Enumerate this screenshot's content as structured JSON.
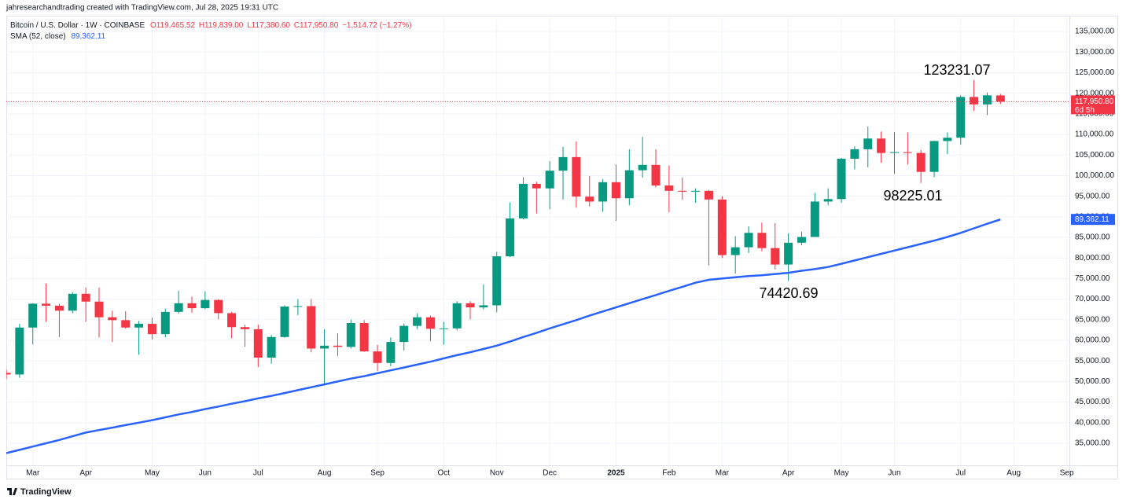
{
  "chart_data": {
    "type": "candlestick",
    "header": "jahresearchandtrading created with TradingView.com, Jul 28, 2025 19:31 UTC",
    "title": "Bitcoin / U.S. Dollar · 1W · COINBASE",
    "legend_values": [
      "O119,465.52",
      "H119,839.00",
      "L117,380.60",
      "C117,950.80",
      "−1,514.72 (−1.27%)"
    ],
    "series": [
      {
        "name": "Bitcoin / U.S. Dollar",
        "up_color": "#089981",
        "down_color": "#f23645",
        "open": [
          52100,
          51700,
          63100,
          68900,
          68400,
          67200,
          71300,
          69400,
          65600,
          64900,
          63100,
          64000,
          61500,
          66900,
          69000,
          67800,
          69800,
          66600,
          63200,
          62700,
          55800,
          60800,
          68200,
          68300,
          58000,
          58700,
          58400,
          64200,
          57300,
          54500,
          59600,
          63500,
          65600,
          62800,
          62900,
          69000,
          68000,
          68500,
          80400,
          89600,
          98000,
          96900,
          101200,
          104500,
          94900,
          93700,
          98400,
          94500,
          101300,
          102600,
          97600,
          96300,
          96100,
          96300,
          94200,
          80700,
          82600,
          86100,
          82400,
          78400,
          83700,
          85100,
          93700,
          94300,
          104100,
          106400,
          109000,
          105500,
          105700,
          105500,
          100900,
          108400,
          109200,
          119100,
          117300,
          119465.52
        ],
        "high": [
          52900,
          64000,
          69000,
          73800,
          68900,
          71700,
          72800,
          72800,
          67200,
          67100,
          64700,
          65500,
          67700,
          72000,
          70600,
          71900,
          70000,
          66900,
          63800,
          63800,
          61300,
          68500,
          70000,
          70000,
          62700,
          61700,
          65000,
          64900,
          58900,
          60700,
          64100,
          66500,
          66000,
          64500,
          69500,
          69500,
          73600,
          81500,
          93500,
          99600,
          98500,
          103500,
          107000,
          108300,
          99900,
          99200,
          102700,
          106400,
          109400,
          106400,
          102500,
          99500,
          96900,
          96500,
          95000,
          85300,
          87700,
          88600,
          88500,
          86000,
          86400,
          95800,
          96900,
          104300,
          107100,
          111900,
          110700,
          110600,
          110500,
          106200,
          108500,
          110500,
          119500,
          123231.07,
          120200,
          119839.0
        ],
        "low": [
          50600,
          50900,
          59000,
          64500,
          60800,
          66600,
          64500,
          60700,
          59600,
          62800,
          56500,
          60200,
          60700,
          66500,
          66700,
          67600,
          65100,
          60500,
          58400,
          53500,
          54300,
          60600,
          66100,
          57100,
          49000,
          56200,
          58000,
          57200,
          52600,
          53700,
          57500,
          62700,
          59800,
          58900,
          62400,
          65100,
          67500,
          66800,
          80200,
          89400,
          90800,
          91800,
          94200,
          92200,
          92500,
          91200,
          89000,
          92800,
          99500,
          97100,
          91100,
          94100,
          93400,
          78200,
          80000,
          76200,
          81200,
          81600,
          77200,
          74420.69,
          83100,
          85100,
          92800,
          93400,
          101500,
          102000,
          103100,
          100400,
          102700,
          98225.01,
          99600,
          105200,
          107500,
          115700,
          114700,
          117380.6
        ],
        "close": [
          51700,
          63100,
          68900,
          68400,
          67200,
          71300,
          69400,
          65600,
          64900,
          63100,
          64000,
          61500,
          66900,
          69000,
          67800,
          69800,
          66600,
          63200,
          62700,
          55800,
          60800,
          68200,
          68300,
          58000,
          58700,
          58400,
          64200,
          57300,
          54500,
          59600,
          63500,
          65600,
          62800,
          62900,
          69000,
          68000,
          68500,
          80400,
          89600,
          98000,
          96900,
          101200,
          104500,
          94900,
          93700,
          98400,
          94500,
          101300,
          102600,
          97600,
          96300,
          96100,
          96300,
          94200,
          80700,
          82600,
          86100,
          82400,
          78400,
          83700,
          85100,
          93700,
          94300,
          104100,
          106400,
          109000,
          105500,
          105700,
          105500,
          100900,
          108400,
          109200,
          119100,
          117300,
          119500,
          117950.8
        ]
      }
    ],
    "sma": {
      "name": "SMA (52, close)",
      "color": "#2962ff",
      "value_label": "89,362.11",
      "values": [
        32600,
        33400,
        34200,
        35000,
        35800,
        36700,
        37600,
        38200,
        38800,
        39400,
        40000,
        40600,
        41300,
        42000,
        42600,
        43300,
        43900,
        44600,
        45200,
        45900,
        46500,
        47200,
        47900,
        48600,
        49300,
        50000,
        50700,
        51300,
        52000,
        52700,
        53400,
        54100,
        54800,
        55600,
        56400,
        57100,
        57900,
        58700,
        59700,
        60800,
        61800,
        62900,
        63900,
        64900,
        66000,
        67000,
        68000,
        69000,
        70000,
        71000,
        72000,
        73000,
        74000,
        74700,
        75000,
        75300,
        75600,
        75800,
        76100,
        76400,
        76900,
        77300,
        77800,
        78600,
        79400,
        80200,
        81000,
        81800,
        82600,
        83400,
        84200,
        85100,
        86100,
        87200,
        88300,
        89362.11
      ]
    },
    "last_price_label": "117,950.80",
    "countdown": "6d 5h",
    "annotations": [
      "123231.07",
      "98225.01",
      "74420.69"
    ],
    "xlim": [
      0,
      80.2
    ],
    "xticks": [
      {
        "value": 2,
        "label": "Mar"
      },
      {
        "value": 6,
        "label": "Apr"
      },
      {
        "value": 11,
        "label": "May"
      },
      {
        "value": 15,
        "label": "Jun"
      },
      {
        "value": 19,
        "label": "Jul"
      },
      {
        "value": 24,
        "label": "Aug"
      },
      {
        "value": 28,
        "label": "Sep"
      },
      {
        "value": 33,
        "label": "Oct"
      },
      {
        "value": 37,
        "label": "Nov"
      },
      {
        "value": 41,
        "label": "Dec"
      },
      {
        "value": 46,
        "label": "2025"
      },
      {
        "value": 50,
        "label": "Feb"
      },
      {
        "value": 54,
        "label": "Mar"
      },
      {
        "value": 59,
        "label": "Apr"
      },
      {
        "value": 63,
        "label": "May"
      },
      {
        "value": 67,
        "label": "Jun"
      },
      {
        "value": 72,
        "label": "Jul"
      },
      {
        "value": 76,
        "label": "Aug"
      },
      {
        "value": 80,
        "label": "Sep"
      }
    ],
    "ylim": [
      29650,
      138450
    ],
    "yticks": [
      {
        "value": 35000,
        "label": "35,000.00"
      },
      {
        "value": 40000,
        "label": "40,000.00"
      },
      {
        "value": 45000,
        "label": "45,000.00"
      },
      {
        "value": 50000,
        "label": "50,000.00"
      },
      {
        "value": 55000,
        "label": "55,000.00"
      },
      {
        "value": 60000,
        "label": "60,000.00"
      },
      {
        "value": 65000,
        "label": "65,000.00"
      },
      {
        "value": 70000,
        "label": "70,000.00"
      },
      {
        "value": 75000,
        "label": "75,000.00"
      },
      {
        "value": 80000,
        "label": "80,000.00"
      },
      {
        "value": 85000,
        "label": "85,000.00"
      },
      {
        "value": 90000,
        "label": "90,000.00"
      },
      {
        "value": 95000,
        "label": "95,000.00"
      },
      {
        "value": 100000,
        "label": "100,000.00"
      },
      {
        "value": 105000,
        "label": "105,000.00"
      },
      {
        "value": 110000,
        "label": "110,000.00"
      },
      {
        "value": 115000,
        "label": "115,000.00"
      },
      {
        "value": 120000,
        "label": "120,000.00"
      },
      {
        "value": 125000,
        "label": "125,000.00"
      },
      {
        "value": 130000,
        "label": "130,000.00"
      },
      {
        "value": 135000,
        "label": "135,000.00"
      }
    ],
    "grid": true,
    "footer": "TradingView"
  }
}
